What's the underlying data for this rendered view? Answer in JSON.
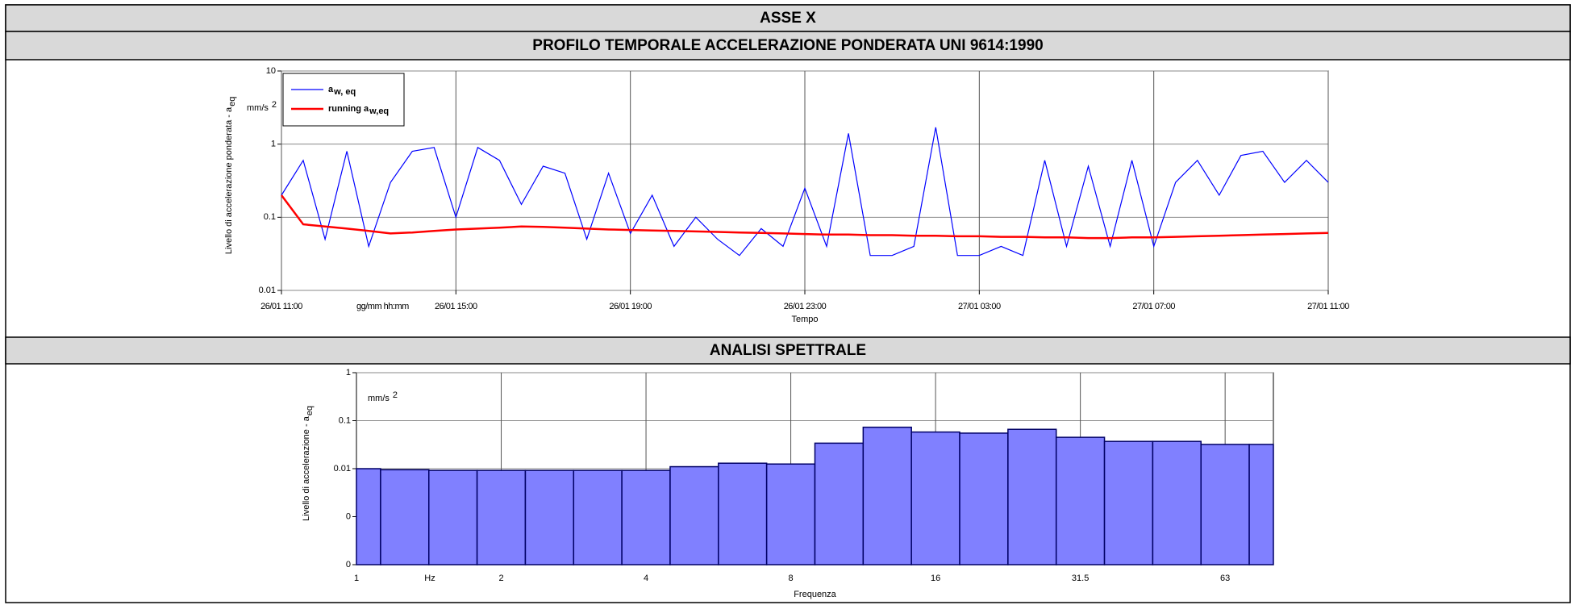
{
  "title": "ASSE X",
  "chart_data": [
    {
      "type": "line",
      "title": "PROFILO TEMPORALE ACCELERAZIONE PONDERATA UNI 9614:1990",
      "y_label": "Livello di accelerazione ponderata - a",
      "y_label_sub": "eq",
      "y_unit": "mm/s",
      "y_unit_sup": "2",
      "x_label": "Tempo",
      "x_unit": "gg/mm hh:mm",
      "log_y": true,
      "grid": true,
      "legend": "upper left",
      "x": [
        "26/01 11:00",
        "26/01 11:30",
        "26/01 12:00",
        "26/01 12:30",
        "26/01 13:00",
        "26/01 13:30",
        "26/01 14:00",
        "26/01 14:30",
        "26/01 15:00",
        "26/01 15:30",
        "26/01 16:00",
        "26/01 16:30",
        "26/01 17:00",
        "26/01 17:30",
        "26/01 18:00",
        "26/01 18:30",
        "26/01 19:00",
        "26/01 19:30",
        "26/01 20:00",
        "26/01 20:30",
        "26/01 21:00",
        "26/01 21:30",
        "26/01 22:00",
        "26/01 22:30",
        "26/01 23:00",
        "26/01 23:30",
        "27/01 00:00",
        "27/01 00:30",
        "27/01 01:00",
        "27/01 01:30",
        "27/01 02:00",
        "27/01 02:30",
        "27/01 03:00",
        "27/01 03:30",
        "27/01 04:00",
        "27/01 04:30",
        "27/01 05:00",
        "27/01 05:30",
        "27/01 06:00",
        "27/01 06:30",
        "27/01 07:00",
        "27/01 07:30",
        "27/01 08:00",
        "27/01 08:30",
        "27/01 09:00",
        "27/01 09:30",
        "27/01 10:00",
        "27/01 10:30",
        "27/01 11:00"
      ],
      "series": [
        {
          "name": "a",
          "name_sub": "w, eq",
          "color": "#0000ff",
          "values": [
            0.2,
            0.6,
            0.05,
            0.8,
            0.04,
            0.3,
            0.8,
            0.9,
            0.1,
            0.9,
            0.6,
            0.15,
            0.5,
            0.4,
            0.05,
            0.4,
            0.06,
            0.2,
            0.04,
            0.1,
            0.05,
            0.03,
            0.07,
            0.04,
            0.25,
            0.04,
            1.4,
            0.03,
            0.03,
            0.04,
            1.7,
            0.03,
            0.03,
            0.04,
            0.03,
            0.6,
            0.04,
            0.5,
            0.04,
            0.6,
            0.04,
            0.3,
            0.6,
            0.2,
            0.7,
            0.8,
            0.3,
            0.6,
            0.3
          ]
        },
        {
          "name": "running a",
          "name_sub": "w,eq",
          "color": "#ff0000",
          "values": [
            0.2,
            0.08,
            0.075,
            0.07,
            0.065,
            0.06,
            0.062,
            0.065,
            0.068,
            0.07,
            0.072,
            0.075,
            0.074,
            0.072,
            0.07,
            0.068,
            0.067,
            0.066,
            0.065,
            0.064,
            0.063,
            0.062,
            0.061,
            0.06,
            0.059,
            0.058,
            0.058,
            0.057,
            0.057,
            0.056,
            0.056,
            0.055,
            0.055,
            0.054,
            0.054,
            0.053,
            0.053,
            0.052,
            0.052,
            0.053,
            0.053,
            0.054,
            0.055,
            0.056,
            0.057,
            0.058,
            0.059,
            0.06,
            0.061
          ]
        }
      ],
      "xlim": [
        "26/01 11:00",
        "27/01 11:00"
      ],
      "xticks": [
        "26/01 11:00",
        "26/01 15:00",
        "26/01 19:00",
        "26/01 23:00",
        "27/01 03:00",
        "27/01 07:00",
        "27/01 11:00"
      ],
      "ylim": [
        0.01,
        10
      ],
      "yticks": [
        0.01,
        0.1,
        1,
        10
      ]
    },
    {
      "type": "bar",
      "title": "ANALISI SPETTRALE",
      "y_label": "Livello di accelerazione - a",
      "y_label_sub": "eq",
      "y_unit": "mm/s",
      "y_unit_sup": "2",
      "x_label": "Frequenza",
      "x_unit": "Hz",
      "log_y": true,
      "grid": true,
      "color": "#8080ff",
      "edge_color": "#000066",
      "categories": [
        "1",
        null,
        null,
        "2",
        null,
        null,
        "4",
        null,
        null,
        "8",
        null,
        null,
        "16",
        null,
        null,
        "31.5",
        null,
        null,
        "63",
        null
      ],
      "values": [
        0.01,
        0.0095,
        0.0092,
        0.0092,
        0.0092,
        0.0092,
        0.0092,
        0.011,
        0.013,
        0.0125,
        0.034,
        0.073,
        0.058,
        0.055,
        0.066,
        0.045,
        0.037,
        0.037,
        0.032,
        0.032
      ],
      "ylim": [
        0.0001,
        1
      ],
      "yticks": [
        {
          "value": 0.0001,
          "label": "0"
        },
        {
          "value": 0.001,
          "label": "0"
        },
        0.01,
        0.1,
        1
      ]
    }
  ]
}
